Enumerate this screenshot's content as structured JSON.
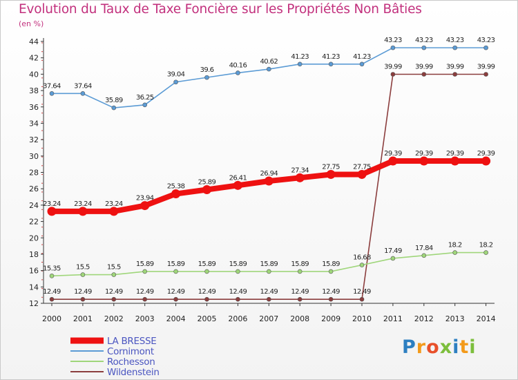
{
  "title": "Evolution du Taux de Taxe Foncière sur les Propriétés Non Bâties",
  "unit_label": "(en %)",
  "logo": {
    "text": "Proxiti",
    "letters": [
      "P",
      "r",
      "o",
      "x",
      "i",
      "t",
      "i"
    ],
    "colors": [
      "#2d7fc1",
      "#f39a1b",
      "#e8502a",
      "#7cbe3c",
      "#2d7fc1",
      "#f39a1b",
      "#7cbe3c"
    ]
  },
  "chart_data": {
    "type": "line",
    "title": "Evolution du Taux de Taxe Foncière sur les Propriétés Non Bâties",
    "ylabel": "(en %)",
    "xlabel": "",
    "x": [
      "2000",
      "2001",
      "2002",
      "2003",
      "2004",
      "2005",
      "2006",
      "2007",
      "2008",
      "2009",
      "2010",
      "2011",
      "2012",
      "2013",
      "2014"
    ],
    "ylim": [
      12,
      44
    ],
    "yticks": [
      12,
      14,
      16,
      18,
      20,
      22,
      24,
      26,
      28,
      30,
      32,
      34,
      36,
      38,
      40,
      42,
      44
    ],
    "grid": false,
    "legend_position": "bottom-left",
    "series": [
      {
        "name": "LA BRESSE",
        "color": "#ee1111",
        "bold": true,
        "values": [
          23.24,
          23.24,
          23.24,
          23.94,
          25.38,
          25.89,
          26.41,
          26.94,
          27.34,
          27.75,
          27.75,
          29.39,
          29.39,
          29.39,
          29.39
        ],
        "labels": [
          "23.24",
          "23.24",
          "23.24",
          "23.94",
          "25.38",
          "25.89",
          "26.41",
          "26.94",
          "27.34",
          "27.75",
          "27.75",
          "29.39",
          "29.39",
          "29.39",
          "29.39"
        ]
      },
      {
        "name": "Cornimont",
        "color": "#5b9bd5",
        "values": [
          37.64,
          37.64,
          35.89,
          36.25,
          39.04,
          39.6,
          40.16,
          40.62,
          41.23,
          41.23,
          41.23,
          43.23,
          43.23,
          43.23,
          43.23
        ],
        "labels": [
          "37.64",
          "37.64",
          "35.89",
          "36.25",
          "39.04",
          "39.6",
          "40.16",
          "40.62",
          "41.23",
          "41.23",
          "41.23",
          "43.23",
          "43.23",
          "43.23",
          "43.23"
        ]
      },
      {
        "name": "Rochesson",
        "color": "#9fd67a",
        "values": [
          15.35,
          15.5,
          15.5,
          15.89,
          15.89,
          15.89,
          15.89,
          15.89,
          15.89,
          15.89,
          16.68,
          17.49,
          17.84,
          18.2,
          18.2
        ],
        "labels": [
          "15.35",
          "15.5",
          "15.5",
          "15.89",
          "15.89",
          "15.89",
          "15.89",
          "15.89",
          "15.89",
          "15.89",
          "16.68",
          "17.49",
          "17.84",
          "18.2",
          "18.2"
        ]
      },
      {
        "name": "Wildenstein",
        "color": "#8b3d3d",
        "values": [
          12.49,
          12.49,
          12.49,
          12.49,
          12.49,
          12.49,
          12.49,
          12.49,
          12.49,
          12.49,
          12.49,
          39.99,
          39.99,
          39.99,
          39.99
        ],
        "labels": [
          "12.49",
          "12.49",
          "12.49",
          "12.49",
          "12.49",
          "12.49",
          "12.49",
          "12.49",
          "12.49",
          "12.49",
          "12.49",
          "39.99",
          "39.99",
          "39.99",
          "39.99"
        ]
      }
    ]
  }
}
